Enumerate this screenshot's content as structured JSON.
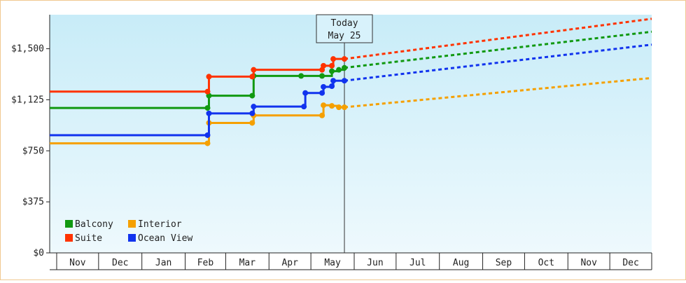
{
  "chart_data": {
    "type": "line",
    "title": "",
    "xlabel": "",
    "ylabel": "",
    "ylim": [
      0,
      1750
    ],
    "y_ticks": [
      {
        "value": 0,
        "label": "$0"
      },
      {
        "value": 375,
        "label": "$375"
      },
      {
        "value": 750,
        "label": "$750"
      },
      {
        "value": 1125,
        "label": "$1,125"
      },
      {
        "value": 1500,
        "label": "$1,500"
      }
    ],
    "x_range": [
      "2023-10-27",
      "2024-12-31"
    ],
    "month_labels": [
      {
        "label": "Nov",
        "start": "2023-11-01",
        "end": "2023-12-01"
      },
      {
        "label": "Dec",
        "start": "2023-12-01",
        "end": "2024-01-01"
      },
      {
        "label": "Jan",
        "start": "2024-01-01",
        "end": "2024-02-01"
      },
      {
        "label": "Feb",
        "start": "2024-02-01",
        "end": "2024-03-01"
      },
      {
        "label": "Mar",
        "start": "2024-03-01",
        "end": "2024-04-01"
      },
      {
        "label": "Apr",
        "start": "2024-04-01",
        "end": "2024-05-01"
      },
      {
        "label": "May",
        "start": "2024-05-01",
        "end": "2024-06-01"
      },
      {
        "label": "Jun",
        "start": "2024-06-01",
        "end": "2024-07-01"
      },
      {
        "label": "Jul",
        "start": "2024-07-01",
        "end": "2024-08-01"
      },
      {
        "label": "Aug",
        "start": "2024-08-01",
        "end": "2024-09-01"
      },
      {
        "label": "Sep",
        "start": "2024-09-01",
        "end": "2024-10-01"
      },
      {
        "label": "Oct",
        "start": "2024-10-01",
        "end": "2024-11-01"
      },
      {
        "label": "Nov",
        "start": "2024-11-01",
        "end": "2024-12-01"
      },
      {
        "label": "Dec",
        "start": "2024-12-01",
        "end": "2024-12-31"
      }
    ],
    "today": {
      "line1": "Today",
      "line2": "May 25",
      "date": "2024-05-25"
    },
    "legend_position": "bottom-left",
    "grid": false,
    "series": [
      {
        "name": "Balcony",
        "color": "#119911",
        "points": [
          [
            "2023-10-27",
            1065
          ],
          [
            "2024-02-17",
            1065
          ],
          [
            "2024-02-18",
            1155
          ],
          [
            "2024-03-20",
            1155
          ],
          [
            "2024-03-21",
            1300
          ],
          [
            "2024-04-24",
            1300
          ],
          [
            "2024-05-09",
            1300
          ],
          [
            "2024-05-16",
            1335
          ],
          [
            "2024-05-21",
            1345
          ],
          [
            "2024-05-25",
            1360
          ]
        ],
        "projection": [
          [
            "2024-05-25",
            1360
          ],
          [
            "2024-12-31",
            1625
          ]
        ]
      },
      {
        "name": "Interior",
        "color": "#f5a000",
        "points": [
          [
            "2023-10-27",
            805
          ],
          [
            "2024-02-17",
            805
          ],
          [
            "2024-02-18",
            955
          ],
          [
            "2024-03-20",
            955
          ],
          [
            "2024-03-21",
            1010
          ],
          [
            "2024-05-09",
            1010
          ],
          [
            "2024-05-10",
            1085
          ],
          [
            "2024-05-16",
            1080
          ],
          [
            "2024-05-21",
            1070
          ],
          [
            "2024-05-25",
            1070
          ]
        ],
        "projection": [
          [
            "2024-05-25",
            1070
          ],
          [
            "2024-12-31",
            1285
          ]
        ]
      },
      {
        "name": "Suite",
        "color": "#ff3300",
        "points": [
          [
            "2023-10-27",
            1185
          ],
          [
            "2024-02-17",
            1185
          ],
          [
            "2024-02-18",
            1295
          ],
          [
            "2024-03-20",
            1295
          ],
          [
            "2024-03-21",
            1345
          ],
          [
            "2024-05-09",
            1345
          ],
          [
            "2024-05-10",
            1375
          ],
          [
            "2024-05-16",
            1375
          ],
          [
            "2024-05-17",
            1425
          ],
          [
            "2024-05-25",
            1425
          ]
        ],
        "projection": [
          [
            "2024-05-25",
            1425
          ],
          [
            "2024-12-31",
            1720
          ]
        ]
      },
      {
        "name": "Ocean View",
        "color": "#1133ee",
        "points": [
          [
            "2023-10-27",
            865
          ],
          [
            "2024-02-17",
            865
          ],
          [
            "2024-02-18",
            1025
          ],
          [
            "2024-03-20",
            1025
          ],
          [
            "2024-03-21",
            1075
          ],
          [
            "2024-04-26",
            1075
          ],
          [
            "2024-04-27",
            1175
          ],
          [
            "2024-05-09",
            1175
          ],
          [
            "2024-05-10",
            1220
          ],
          [
            "2024-05-16",
            1225
          ],
          [
            "2024-05-17",
            1265
          ],
          [
            "2024-05-25",
            1265
          ]
        ],
        "projection": [
          [
            "2024-05-25",
            1265
          ],
          [
            "2024-12-31",
            1530
          ]
        ]
      }
    ]
  }
}
